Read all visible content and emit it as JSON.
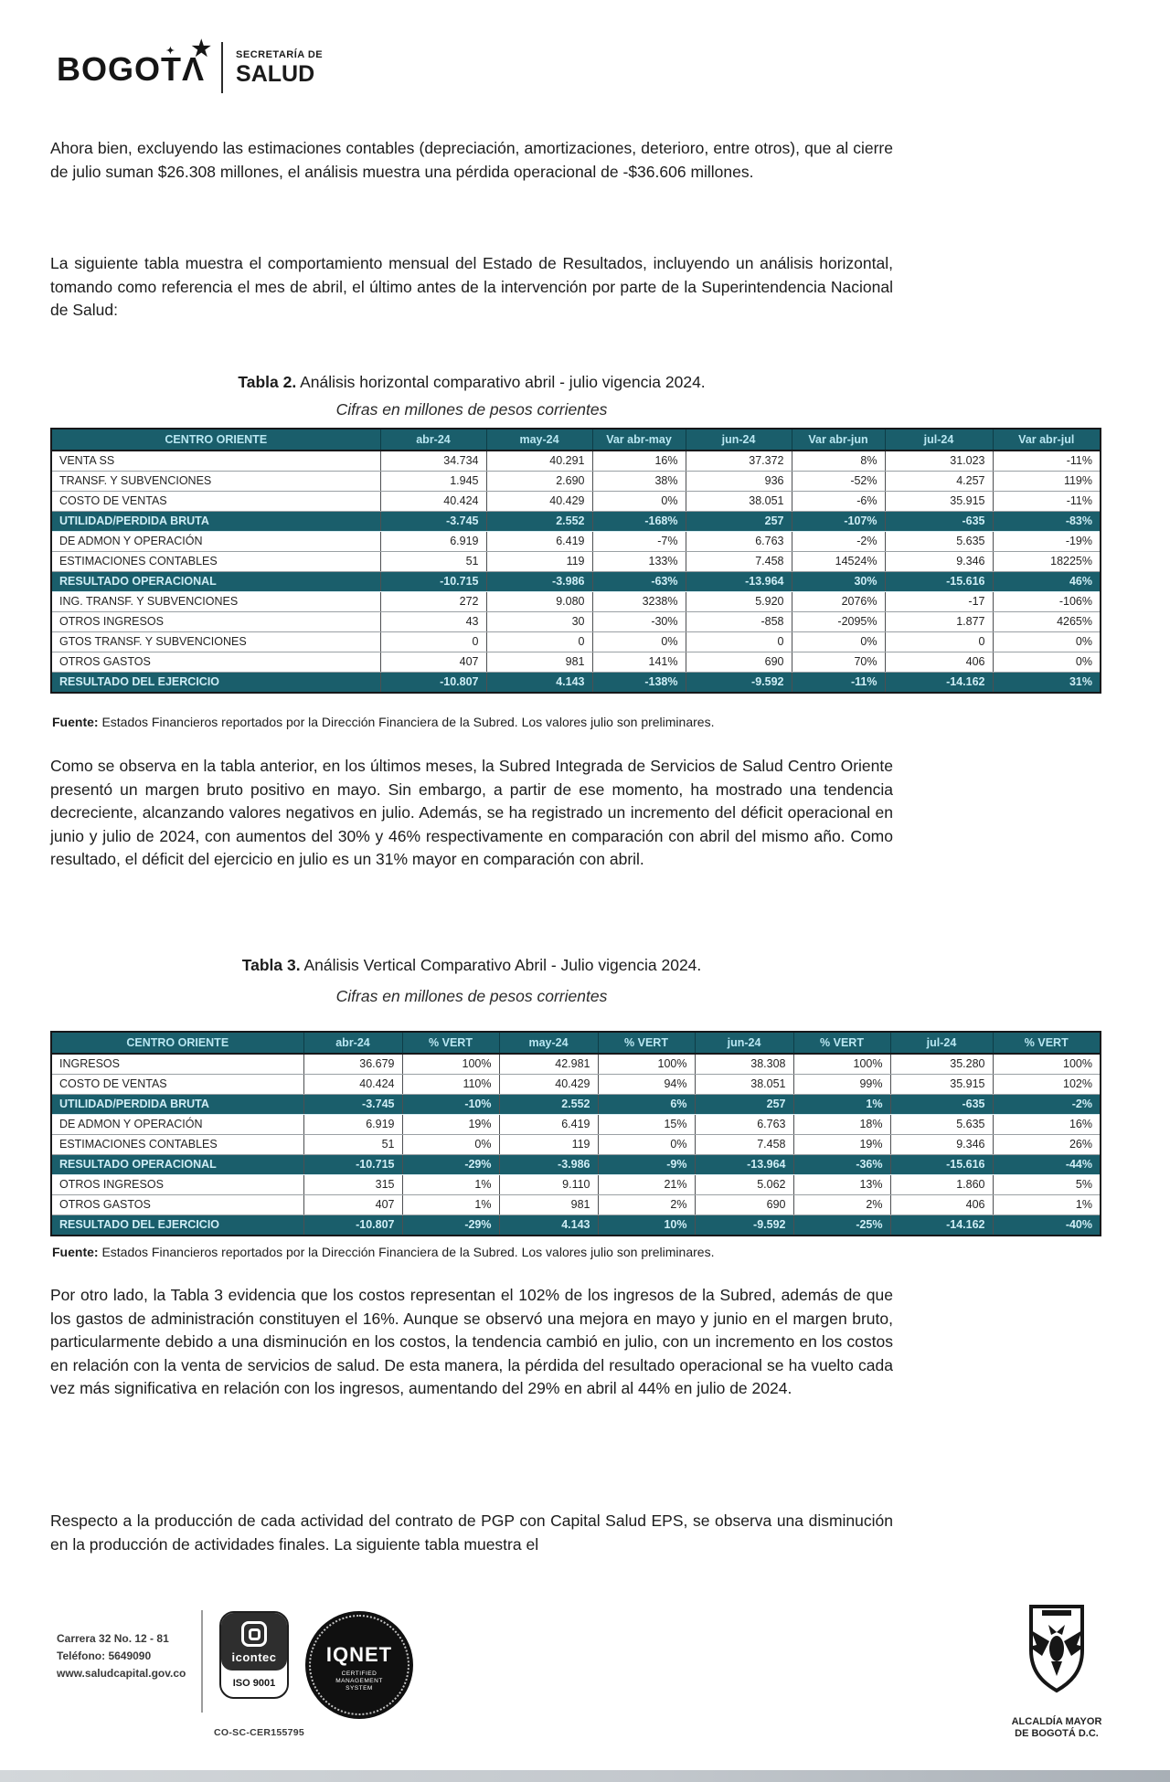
{
  "logo": {
    "city": "BOGOT",
    "peak": "Λ",
    "dept_line1": "SECRETARÍA DE",
    "dept_line2": "SALUD"
  },
  "paragraphs": {
    "p1": "Ahora bien, excluyendo las estimaciones contables (depreciación, amortizaciones, deterioro, entre otros), que al cierre de julio suman $26.308 millones, el análisis muestra una pérdida operacional de -$36.606 millones.",
    "p2": "La siguiente tabla muestra el comportamiento mensual del Estado de Resultados, incluyendo un análisis horizontal, tomando como referencia el mes de abril, el último antes de la intervención por parte de la Superintendencia Nacional de Salud:",
    "p3": "Como se observa en la tabla anterior, en los últimos meses, la Subred Integrada de Servicios de Salud Centro Oriente presentó un margen bruto positivo en mayo. Sin embargo, a partir de ese momento, ha mostrado una tendencia decreciente, alcanzando valores negativos en julio. Además, se ha registrado un incremento del déficit operacional en junio y julio de 2024, con aumentos del 30% y 46% respectivamente en comparación con abril del mismo año. Como resultado, el déficit del ejercicio en julio es un 31% mayor en comparación con abril.",
    "p4": "Por otro lado, la Tabla 3 evidencia que los costos representan el 102% de los ingresos de la Subred, además de que los gastos de administración constituyen el 16%. Aunque se observó una mejora en mayo y junio en el margen bruto, particularmente debido a una disminución en los costos, la tendencia cambió en julio, con un incremento en los costos en relación con la venta de servicios de salud. De esta manera, la pérdida del resultado operacional se ha vuelto cada vez más significativa en relación con los ingresos, aumentando del 29% en abril al 44% en julio de 2024.",
    "p5": "Respecto a la producción de cada actividad del contrato de PGP con Capital Salud EPS, se observa una disminución en la producción de actividades finales. La siguiente tabla muestra el"
  },
  "table2": {
    "title_bold": "Tabla 2.",
    "title_rest": " Análisis horizontal comparativo abril - julio vigencia 2024.",
    "subtitle": "Cifras en millones de pesos corrientes",
    "columns": [
      "CENTRO ORIENTE",
      "abr-24",
      "may-24",
      "Var abr-may",
      "jun-24",
      "Var abr-jun",
      "jul-24",
      "Var abr-jul"
    ],
    "rows": [
      {
        "label": "VENTA SS",
        "highlight": false,
        "values": [
          "34.734",
          "40.291",
          "16%",
          "37.372",
          "8%",
          "31.023",
          "-11%"
        ]
      },
      {
        "label": "TRANSF. Y SUBVENCIONES",
        "highlight": false,
        "values": [
          "1.945",
          "2.690",
          "38%",
          "936",
          "-52%",
          "4.257",
          "119%"
        ]
      },
      {
        "label": "COSTO DE VENTAS",
        "highlight": false,
        "values": [
          "40.424",
          "40.429",
          "0%",
          "38.051",
          "-6%",
          "35.915",
          "-11%"
        ]
      },
      {
        "label": "UTILIDAD/PERDIDA BRUTA",
        "highlight": true,
        "values": [
          "-3.745",
          "2.552",
          "-168%",
          "257",
          "-107%",
          "-635",
          "-83%"
        ]
      },
      {
        "label": "DE ADMON Y OPERACIÓN",
        "highlight": false,
        "values": [
          "6.919",
          "6.419",
          "-7%",
          "6.763",
          "-2%",
          "5.635",
          "-19%"
        ]
      },
      {
        "label": "ESTIMACIONES CONTABLES",
        "highlight": false,
        "values": [
          "51",
          "119",
          "133%",
          "7.458",
          "14524%",
          "9.346",
          "18225%"
        ]
      },
      {
        "label": "RESULTADO OPERACIONAL",
        "highlight": true,
        "values": [
          "-10.715",
          "-3.986",
          "-63%",
          "-13.964",
          "30%",
          "-15.616",
          "46%"
        ]
      },
      {
        "label": "ING. TRANSF. Y SUBVENCIONES",
        "highlight": false,
        "values": [
          "272",
          "9.080",
          "3238%",
          "5.920",
          "2076%",
          "-17",
          "-106%"
        ]
      },
      {
        "label": "OTROS INGRESOS",
        "highlight": false,
        "values": [
          "43",
          "30",
          "-30%",
          "-858",
          "-2095%",
          "1.877",
          "4265%"
        ]
      },
      {
        "label": "GTOS TRANSF. Y SUBVENCIONES",
        "highlight": false,
        "values": [
          "0",
          "0",
          "0%",
          "0",
          "0%",
          "0",
          "0%"
        ]
      },
      {
        "label": "OTROS GASTOS",
        "highlight": false,
        "values": [
          "407",
          "981",
          "141%",
          "690",
          "70%",
          "406",
          "0%"
        ]
      },
      {
        "label": "RESULTADO DEL EJERCICIO",
        "highlight": true,
        "values": [
          "-10.807",
          "4.143",
          "-138%",
          "-9.592",
          "-11%",
          "-14.162",
          "31%"
        ]
      }
    ],
    "fuente_bold": "Fuente:",
    "fuente_rest": " Estados Financieros reportados por la Dirección Financiera de la Subred. Los valores julio son preliminares."
  },
  "table3": {
    "title_bold": "Tabla 3.",
    "title_rest": " Análisis Vertical Comparativo Abril - Julio vigencia 2024.",
    "subtitle": "Cifras en millones de pesos corrientes",
    "columns": [
      "CENTRO ORIENTE",
      "abr-24",
      "% VERT",
      "may-24",
      "% VERT",
      "jun-24",
      "% VERT",
      "jul-24",
      "% VERT"
    ],
    "rows": [
      {
        "label": "INGRESOS",
        "highlight": false,
        "values": [
          "36.679",
          "100%",
          "42.981",
          "100%",
          "38.308",
          "100%",
          "35.280",
          "100%"
        ]
      },
      {
        "label": "COSTO DE VENTAS",
        "highlight": false,
        "values": [
          "40.424",
          "110%",
          "40.429",
          "94%",
          "38.051",
          "99%",
          "35.915",
          "102%"
        ]
      },
      {
        "label": "UTILIDAD/PERDIDA BRUTA",
        "highlight": true,
        "values": [
          "-3.745",
          "-10%",
          "2.552",
          "6%",
          "257",
          "1%",
          "-635",
          "-2%"
        ]
      },
      {
        "label": "DE ADMON Y OPERACIÓN",
        "highlight": false,
        "values": [
          "6.919",
          "19%",
          "6.419",
          "15%",
          "6.763",
          "18%",
          "5.635",
          "16%"
        ]
      },
      {
        "label": "ESTIMACIONES CONTABLES",
        "highlight": false,
        "values": [
          "51",
          "0%",
          "119",
          "0%",
          "7.458",
          "19%",
          "9.346",
          "26%"
        ]
      },
      {
        "label": "RESULTADO OPERACIONAL",
        "highlight": true,
        "values": [
          "-10.715",
          "-29%",
          "-3.986",
          "-9%",
          "-13.964",
          "-36%",
          "-15.616",
          "-44%"
        ]
      },
      {
        "label": "OTROS INGRESOS",
        "highlight": false,
        "values": [
          "315",
          "1%",
          "9.110",
          "21%",
          "5.062",
          "13%",
          "1.860",
          "5%"
        ]
      },
      {
        "label": "OTROS GASTOS",
        "highlight": false,
        "values": [
          "407",
          "1%",
          "981",
          "2%",
          "690",
          "2%",
          "406",
          "1%"
        ]
      },
      {
        "label": "RESULTADO DEL EJERCICIO",
        "highlight": true,
        "values": [
          "-10.807",
          "-29%",
          "4.143",
          "10%",
          "-9.592",
          "-25%",
          "-14.162",
          "-40%"
        ]
      }
    ],
    "fuente_bold": "Fuente:",
    "fuente_rest": " Estados Financieros reportados por la Dirección Financiera de la Subred. Los valores julio son preliminares."
  },
  "footer": {
    "address_line1": "Carrera 32 No. 12 - 81",
    "address_line2": "Teléfono: 5649090",
    "address_line3": "www.saludcapital.gov.co",
    "icontec_label": "icontec",
    "iso_label": "ISO 9001",
    "cert_code": "CO-SC-CER155795",
    "iqnet_label": "IQNET",
    "iqnet_sub1": "CERTIFIED",
    "iqnet_sub2": "MANAGEMENT",
    "iqnet_sub3": "SYSTEM",
    "alcaldia_line1": "ALCALDÍA MAYOR",
    "alcaldia_line2": "DE BOGOTÁ D.C."
  },
  "colors": {
    "teal": "#1a5e6b",
    "teal_text": "#b9e7f2"
  }
}
